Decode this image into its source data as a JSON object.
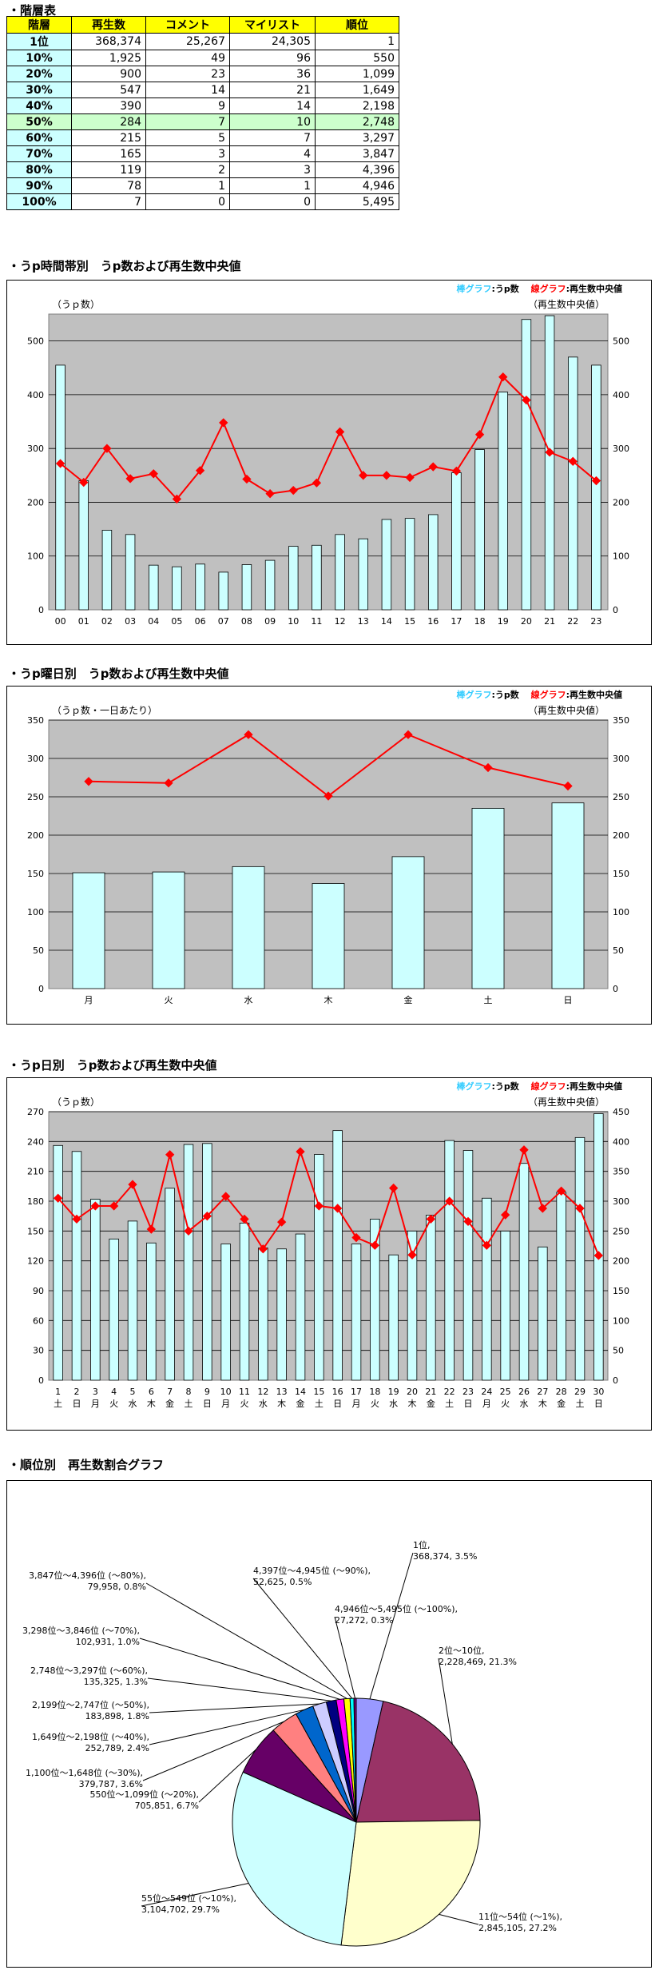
{
  "section1": {
    "title": "・階層表"
  },
  "table": {
    "headers": [
      "階層",
      "再生数",
      "コメント",
      "マイリスト",
      "順位"
    ],
    "rows": [
      [
        "1位",
        "368,374",
        "25,267",
        "24,305",
        "1"
      ],
      [
        "10%",
        "1,925",
        "49",
        "96",
        "550"
      ],
      [
        "20%",
        "900",
        "23",
        "36",
        "1,099"
      ],
      [
        "30%",
        "547",
        "14",
        "21",
        "1,649"
      ],
      [
        "40%",
        "390",
        "9",
        "14",
        "2,198"
      ],
      [
        "50%",
        "284",
        "7",
        "10",
        "2,748"
      ],
      [
        "60%",
        "215",
        "5",
        "7",
        "3,297"
      ],
      [
        "70%",
        "165",
        "3",
        "4",
        "3,847"
      ],
      [
        "80%",
        "119",
        "2",
        "3",
        "4,396"
      ],
      [
        "90%",
        "78",
        "1",
        "1",
        "4,946"
      ],
      [
        "100%",
        "7",
        "0",
        "0",
        "5,495"
      ]
    ]
  },
  "section2": {
    "title": "・うp時間帯別　うp数および再生数中央値"
  },
  "section3": {
    "title": "・うp曜日別　うp数および再生数中央値"
  },
  "section4": {
    "title": "・うp日別　うp数および再生数中央値"
  },
  "section5": {
    "title": "・順位別　再生数割合グラフ"
  },
  "legend": {
    "bar_label": "棒グラフ",
    "bar_value": "うp数",
    "line_label": "線グラフ",
    "line_value": "再生数中央値"
  },
  "colors": {
    "plot_bg": "#c0c0c0",
    "bar_fill": "#ccffff",
    "bar_stroke": "#000000",
    "line": "#ff0000",
    "grid": "#000000"
  },
  "chart_data": [
    {
      "type": "bar",
      "ylabel_left": "（うｐ数）",
      "ylabel_right": "（再生数中央値）",
      "categories": [
        "00",
        "01",
        "02",
        "03",
        "04",
        "05",
        "06",
        "07",
        "08",
        "09",
        "10",
        "11",
        "12",
        "13",
        "14",
        "15",
        "16",
        "17",
        "18",
        "19",
        "20",
        "21",
        "22",
        "23"
      ],
      "ylim": [
        0,
        550
      ],
      "yticks": [
        0,
        100,
        200,
        300,
        400,
        500
      ],
      "series": [
        {
          "name": "うp数",
          "kind": "bar",
          "axis": "left",
          "values": [
            455,
            240,
            148,
            140,
            83,
            80,
            85,
            70,
            84,
            92,
            118,
            120,
            140,
            132,
            168,
            170,
            177,
            255,
            298,
            405,
            540,
            547,
            470,
            455
          ]
        },
        {
          "name": "再生数中央値",
          "kind": "line",
          "axis": "right",
          "values": [
            272,
            237,
            300,
            244,
            253,
            206,
            259,
            348,
            243,
            216,
            222,
            236,
            331,
            250,
            250,
            246,
            266,
            258,
            326,
            433,
            390,
            293,
            276,
            240
          ]
        }
      ],
      "grid": true
    },
    {
      "type": "bar",
      "ylabel_left": "（うｐ数・一日あたり）",
      "ylabel_right": "（再生数中央値）",
      "categories": [
        "月",
        "火",
        "水",
        "木",
        "金",
        "土",
        "日"
      ],
      "ylim": [
        0,
        350
      ],
      "yticks": [
        0,
        50,
        100,
        150,
        200,
        250,
        300,
        350
      ],
      "series": [
        {
          "name": "うp数",
          "kind": "bar",
          "axis": "left",
          "values": [
            151,
            152,
            159,
            137,
            172,
            235,
            242
          ]
        },
        {
          "name": "再生数中央値",
          "kind": "line",
          "axis": "right",
          "values": [
            270,
            268,
            331,
            251,
            331,
            288,
            264
          ]
        }
      ],
      "grid": true
    },
    {
      "type": "bar",
      "ylabel_left": "（うｐ数）",
      "ylabel_right": "（再生数中央値）",
      "categories": [
        "1",
        "2",
        "3",
        "4",
        "5",
        "6",
        "7",
        "8",
        "9",
        "10",
        "11",
        "12",
        "13",
        "14",
        "15",
        "16",
        "17",
        "18",
        "19",
        "20",
        "21",
        "22",
        "23",
        "24",
        "25",
        "26",
        "27",
        "28",
        "29",
        "30"
      ],
      "sublabels": [
        "土",
        "日",
        "月",
        "火",
        "水",
        "木",
        "金",
        "土",
        "日",
        "月",
        "火",
        "水",
        "木",
        "金",
        "土",
        "日",
        "月",
        "火",
        "水",
        "木",
        "金",
        "土",
        "日",
        "月",
        "火",
        "水",
        "木",
        "金",
        "土",
        "日"
      ],
      "ylim_left": [
        0,
        270
      ],
      "yticks_left": [
        0,
        30,
        60,
        90,
        120,
        150,
        180,
        210,
        240,
        270
      ],
      "ylim_right": [
        0,
        450
      ],
      "yticks_right": [
        0,
        50,
        100,
        150,
        200,
        250,
        300,
        350,
        400,
        450
      ],
      "series": [
        {
          "name": "うp数",
          "kind": "bar",
          "axis": "left",
          "values": [
            236,
            230,
            182,
            142,
            160,
            138,
            193,
            237,
            238,
            137,
            158,
            133,
            132,
            147,
            227,
            251,
            137,
            162,
            126,
            150,
            166,
            241,
            231,
            183,
            150,
            218,
            134,
            189,
            244,
            268
          ]
        },
        {
          "name": "再生数中央値",
          "kind": "line",
          "axis": "right",
          "values": [
            305,
            270,
            292,
            292,
            328,
            253,
            378,
            250,
            275,
            308,
            270,
            220,
            265,
            383,
            292,
            288,
            239,
            226,
            322,
            210,
            270,
            300,
            266,
            226,
            277,
            386,
            288,
            317,
            288,
            209
          ]
        }
      ],
      "grid": true
    },
    {
      "type": "pie",
      "slices": [
        {
          "label": "1位, 368,374, 3.5%",
          "value": 3.5,
          "color": "#9999ff"
        },
        {
          "label": "2位〜10位, 2,228,469, 21.3%",
          "value": 21.3,
          "color": "#993366"
        },
        {
          "label": "11位〜54位 (〜1%), 2,845,105, 27.2%",
          "value": 27.2,
          "color": "#ffffcc"
        },
        {
          "label": "55位〜549位 (〜10%), 3,104,702, 29.7%",
          "value": 29.7,
          "color": "#ccffff"
        },
        {
          "label": "550位〜1,099位 (〜20%), 705,851, 6.7%",
          "value": 6.7,
          "color": "#660066"
        },
        {
          "label": "1,100位〜1,648位 (〜30%), 379,787, 3.6%",
          "value": 3.6,
          "color": "#ff8080"
        },
        {
          "label": "1,649位〜2,198位 (〜40%), 252,789, 2.4%",
          "value": 2.4,
          "color": "#0066cc"
        },
        {
          "label": "2,199位〜2,747位 (〜50%), 183,898, 1.8%",
          "value": 1.8,
          "color": "#ccccff"
        },
        {
          "label": "2,748位〜3,297位 (〜60%), 135,325, 1.3%",
          "value": 1.3,
          "color": "#000080"
        },
        {
          "label": "3,298位〜3,846位 (〜70%), 102,931, 1.0%",
          "value": 1.0,
          "color": "#ff00ff"
        },
        {
          "label": "3,847位〜4,396位 (〜80%), 79,958, 0.8%",
          "value": 0.8,
          "color": "#ffff00"
        },
        {
          "label": "4,397位〜4,945位 (〜90%), 52,625, 0.5%",
          "value": 0.5,
          "color": "#00ffff"
        },
        {
          "label": "4,946位〜5,495位 (〜100%), 27,272, 0.3%",
          "value": 0.3,
          "color": "#800080"
        }
      ]
    }
  ]
}
